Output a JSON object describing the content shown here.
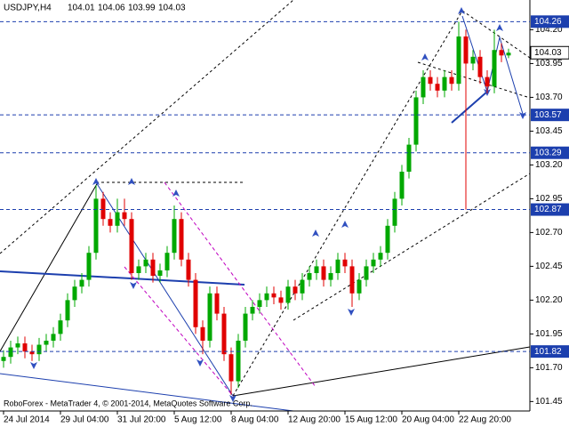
{
  "chart_data": {
    "type": "candlestick",
    "symbol": "USDJPY,H4",
    "footer": "RoboForex - MetaTrader 4, © 2001-2014, MetaQuotes Software Corp.",
    "categories": [
      "24 Jul 2014",
      null,
      null,
      null,
      null,
      null,
      null,
      null,
      "29 Jul 04:00",
      null,
      null,
      null,
      null,
      null,
      null,
      null,
      "31 Jul 20:00",
      null,
      null,
      null,
      null,
      null,
      null,
      null,
      "5 Aug 12:00",
      null,
      null,
      null,
      null,
      null,
      null,
      null,
      "8 Aug 04:00",
      null,
      null,
      null,
      null,
      null,
      null,
      null,
      "12 Aug 20:00",
      null,
      null,
      null,
      null,
      null,
      null,
      null,
      "15 Aug 12:00",
      null,
      null,
      null,
      null,
      null,
      null,
      null,
      "20 Aug 04:00",
      null,
      null,
      null,
      null,
      null,
      null,
      null,
      "22 Aug 20:00",
      null,
      null,
      null,
      null,
      null,
      null,
      null
    ],
    "open": [
      101.75,
      101.78,
      101.85,
      101.88,
      101.82,
      101.8,
      101.87,
      101.9,
      101.95,
      102.05,
      102.2,
      102.3,
      102.35,
      102.55,
      102.95,
      102.8,
      102.75,
      102.85,
      102.8,
      102.4,
      102.45,
      102.5,
      102.38,
      102.42,
      102.55,
      102.8,
      102.5,
      102.35,
      102.0,
      101.9,
      102.25,
      102.1,
      101.8,
      101.6,
      101.9,
      102.1,
      102.15,
      102.2,
      102.25,
      102.22,
      102.18,
      102.3,
      102.25,
      102.35,
      102.4,
      102.45,
      102.35,
      102.4,
      102.5,
      102.45,
      102.25,
      102.35,
      102.45,
      102.5,
      102.55,
      102.75,
      102.95,
      103.15,
      103.35,
      103.7,
      103.85,
      103.8,
      103.75,
      103.85,
      103.8,
      104.15,
      103.95,
      104.0,
      103.85,
      103.78,
      104.05,
      104.01
    ],
    "high": [
      101.83,
      101.9,
      101.93,
      101.93,
      101.87,
      101.92,
      101.95,
      102.0,
      102.1,
      102.25,
      102.35,
      102.4,
      102.6,
      103.05,
      103.0,
      102.85,
      102.95,
      102.95,
      102.85,
      102.5,
      102.55,
      102.55,
      102.47,
      102.6,
      102.9,
      102.85,
      102.55,
      102.4,
      102.05,
      102.3,
      102.3,
      102.15,
      101.85,
      101.95,
      102.15,
      102.2,
      102.25,
      102.3,
      102.3,
      102.27,
      102.35,
      102.35,
      102.4,
      102.45,
      102.5,
      102.5,
      102.45,
      102.55,
      102.55,
      102.5,
      102.4,
      102.5,
      102.55,
      102.6,
      102.8,
      103.0,
      103.2,
      103.4,
      103.75,
      103.9,
      103.9,
      103.85,
      103.9,
      103.9,
      104.26,
      104.2,
      104.05,
      104.05,
      103.9,
      104.2,
      104.1,
      104.06
    ],
    "low": [
      101.7,
      101.73,
      101.8,
      101.77,
      101.75,
      101.75,
      101.82,
      101.85,
      101.9,
      102.0,
      102.15,
      102.25,
      102.3,
      102.5,
      102.75,
      102.7,
      102.7,
      102.75,
      102.35,
      102.35,
      102.4,
      102.33,
      102.33,
      102.37,
      102.5,
      102.45,
      102.3,
      101.95,
      101.8,
      101.85,
      102.05,
      101.75,
      101.5,
      101.55,
      101.85,
      102.05,
      102.1,
      102.15,
      102.17,
      102.13,
      102.13,
      102.2,
      102.2,
      102.3,
      102.35,
      102.3,
      102.3,
      102.35,
      102.4,
      102.15,
      102.2,
      102.3,
      102.4,
      102.45,
      102.5,
      102.7,
      102.9,
      103.1,
      103.3,
      103.65,
      103.75,
      103.7,
      103.7,
      103.75,
      103.75,
      102.87,
      103.9,
      103.8,
      103.73,
      103.73,
      103.96,
      103.99
    ],
    "close": [
      101.78,
      101.85,
      101.88,
      101.82,
      101.8,
      101.87,
      101.9,
      101.95,
      102.05,
      102.2,
      102.3,
      102.35,
      102.55,
      102.95,
      102.8,
      102.75,
      102.85,
      102.8,
      102.4,
      102.45,
      102.5,
      102.38,
      102.42,
      102.55,
      102.8,
      102.5,
      102.35,
      102.0,
      101.9,
      102.25,
      102.1,
      101.8,
      101.6,
      101.9,
      102.1,
      102.15,
      102.2,
      102.25,
      102.22,
      102.18,
      102.3,
      102.25,
      102.35,
      102.4,
      102.45,
      102.35,
      102.4,
      102.5,
      102.45,
      102.25,
      102.35,
      102.45,
      102.5,
      102.55,
      102.75,
      102.95,
      103.15,
      103.35,
      103.7,
      103.85,
      103.8,
      103.75,
      103.85,
      103.8,
      104.15,
      103.95,
      104.0,
      103.85,
      103.78,
      104.05,
      104.01,
      104.03
    ],
    "up_color": "#00a800",
    "down_color": "#e00000",
    "ylim": [
      101.38,
      104.42
    ],
    "yticks": [
      {
        "value": 104.2,
        "label": "104.20"
      },
      103.95,
      {
        "value": 103.7,
        "label": "103.70"
      },
      103.45,
      {
        "value": 103.2,
        "label": "103.20"
      },
      102.95,
      {
        "value": 102.7,
        "label": "102.70"
      },
      102.45,
      {
        "value": 102.2,
        "label": "102.20"
      },
      101.95,
      {
        "value": 101.7,
        "label": "101.70"
      },
      101.45
    ],
    "grid": false,
    "levels": [
      104.26,
      103.57,
      103.29,
      102.87,
      101.82
    ],
    "level_color": "#1c3fae",
    "current_price": 104.03
  }
}
